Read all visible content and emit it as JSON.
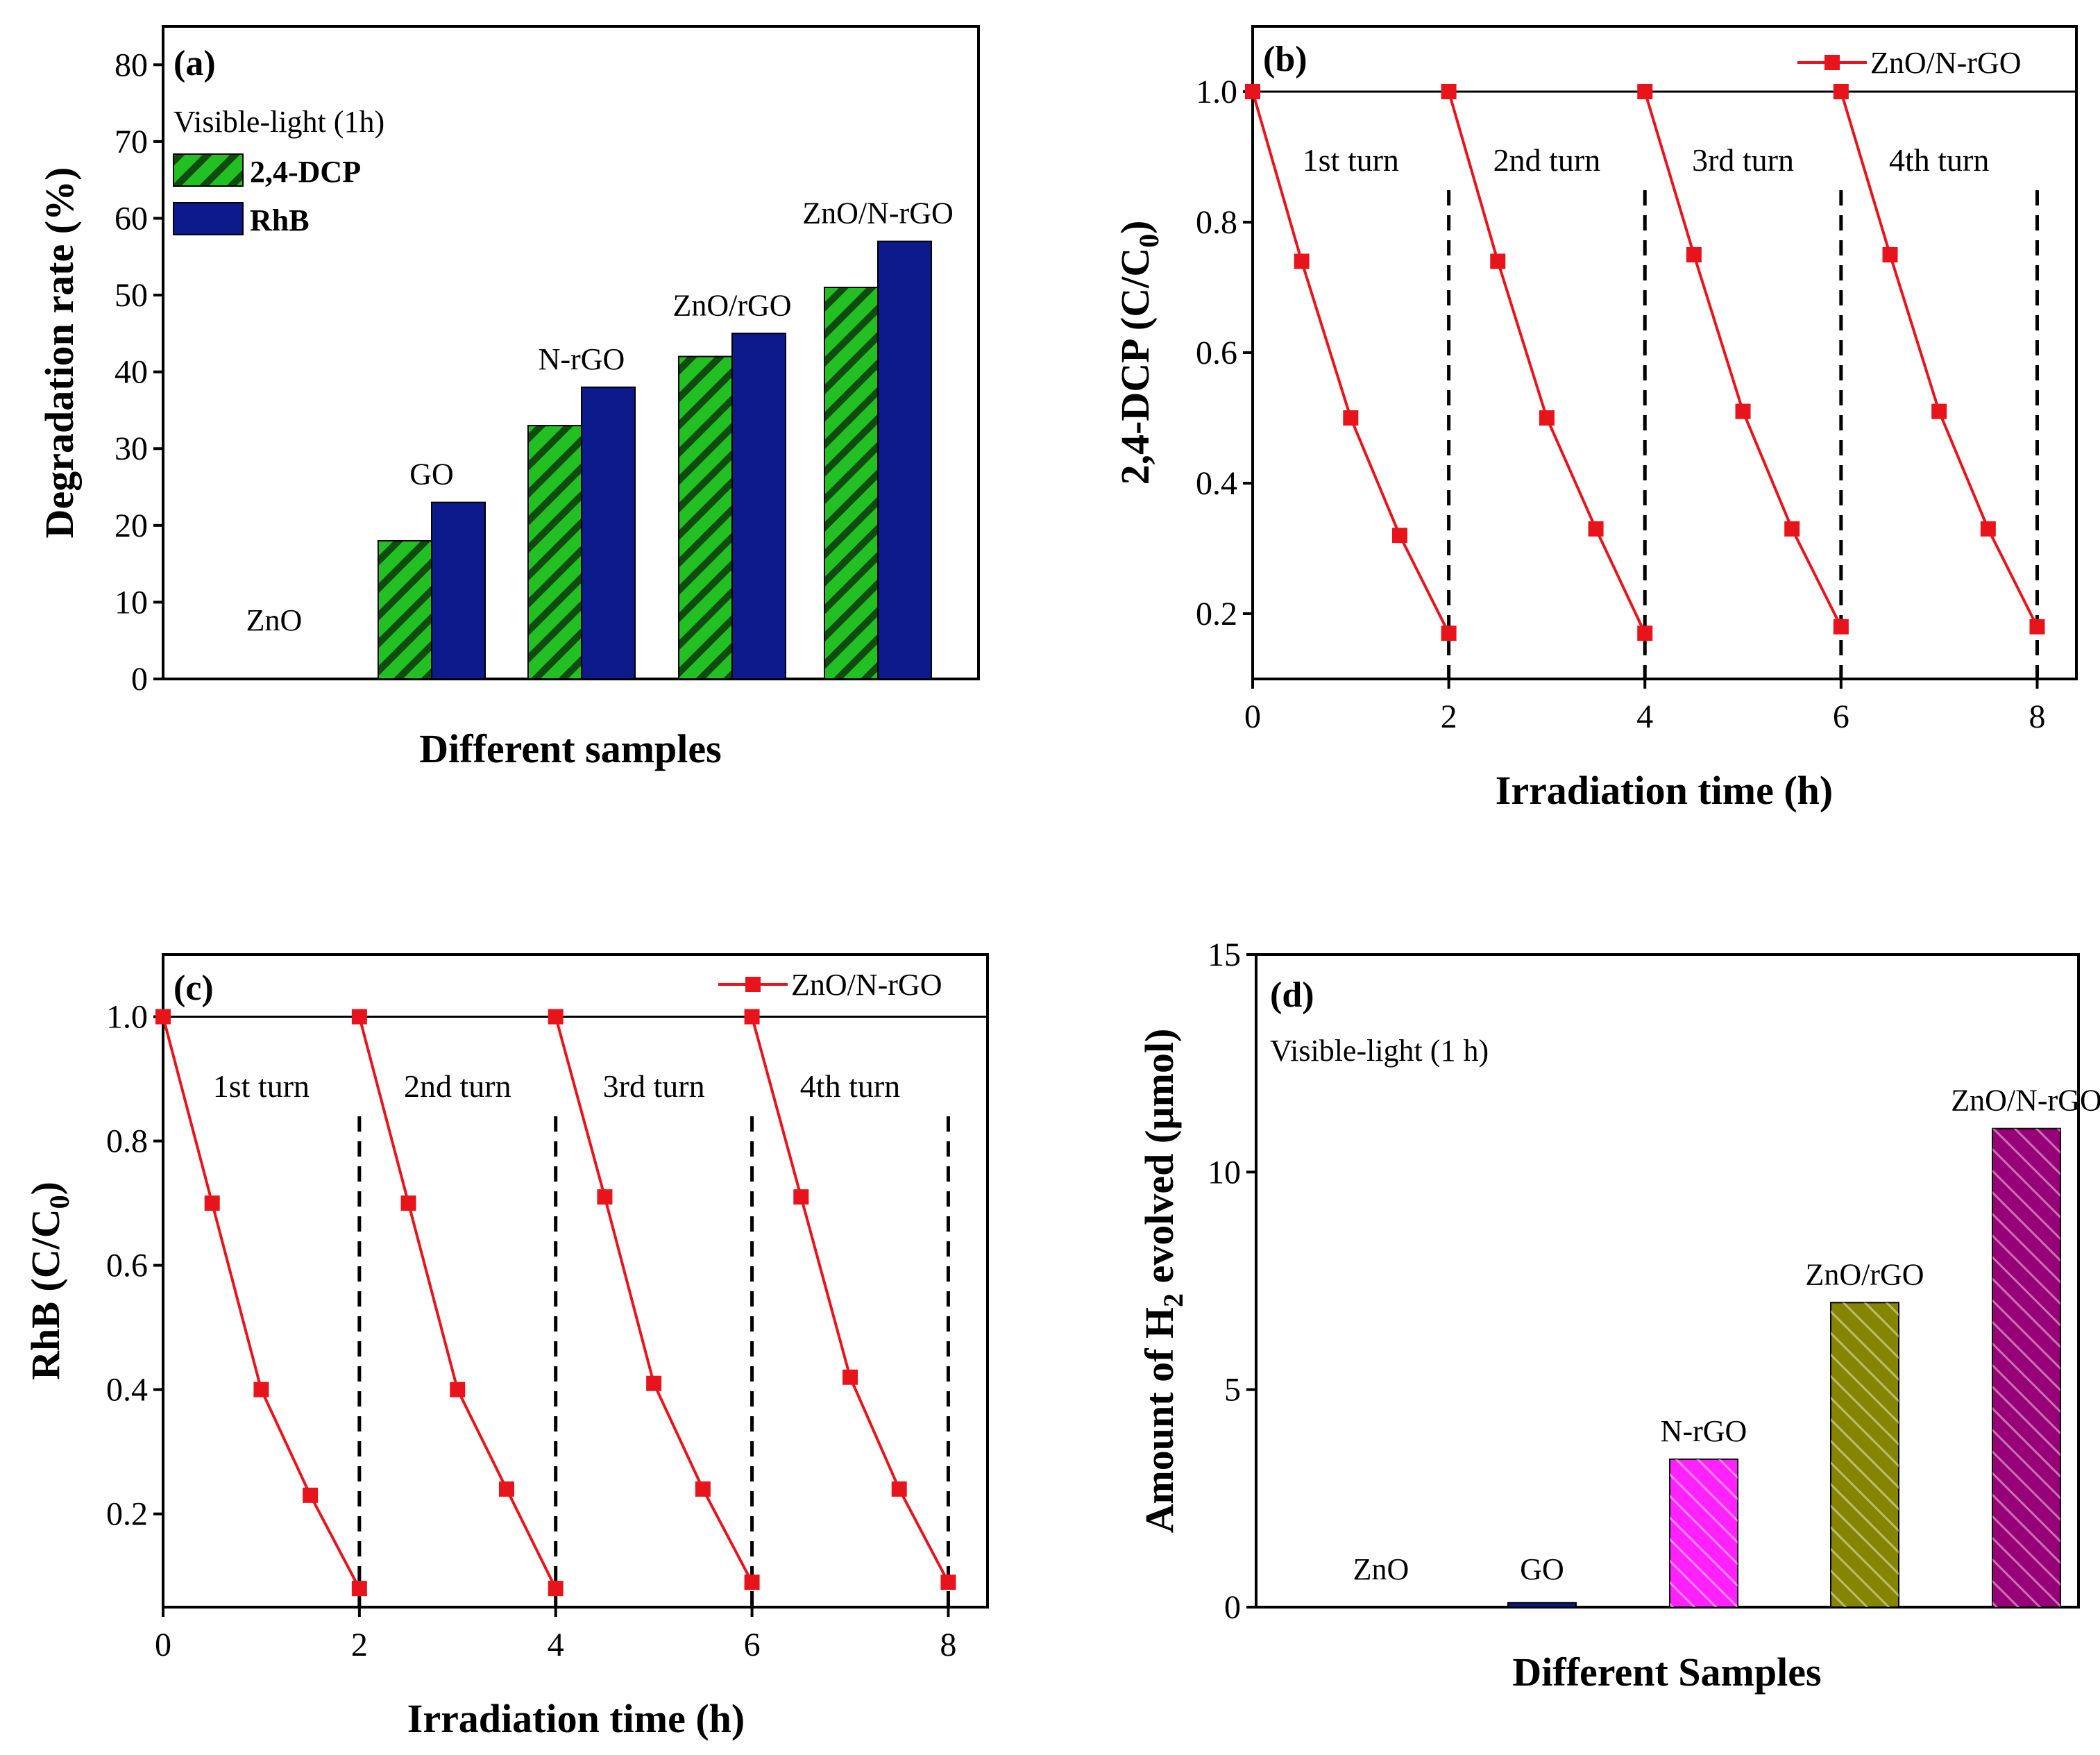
{
  "chart_data": [
    {
      "panel": "(a)",
      "type": "bar",
      "xlabel": "Different samples",
      "ylabel": "Degradation rate (%)",
      "ylim": [
        0,
        85
      ],
      "yticks": [
        0,
        10,
        20,
        30,
        40,
        50,
        60,
        70,
        80
      ],
      "note": "Visible-light (1h)",
      "categories": [
        "ZnO",
        "GO",
        "N-rGO",
        "ZnO/rGO",
        "ZnO/N-rGO"
      ],
      "series": [
        {
          "name": "2,4-DCP",
          "values": [
            0,
            18,
            33,
            42,
            51
          ],
          "color": "#22c022",
          "hatch": true
        },
        {
          "name": "RhB",
          "values": [
            0,
            23,
            38,
            45,
            57
          ],
          "color": "#0d1a8c",
          "hatch": false
        }
      ]
    },
    {
      "panel": "(b)",
      "type": "line",
      "xlabel": "Irradiation time (h)",
      "ylabel_main": "2,4-DCP (C/C",
      "ylabel_sub": "0",
      "ylabel_end": ")",
      "xlim": [
        0,
        8.4
      ],
      "ylim": [
        0.1,
        1.1
      ],
      "xticks": [
        0,
        2,
        4,
        6,
        8
      ],
      "yticks": [
        "0.2",
        "0.4",
        "0.6",
        "0.8",
        "1.0"
      ],
      "legend": "ZnO/N-rGO",
      "color": "#e8141c",
      "turns": [
        "1st turn",
        "2nd turn",
        "3rd turn",
        "4th turn"
      ],
      "dividers": [
        2,
        4,
        6,
        8
      ],
      "cycles": [
        {
          "x": [
            0,
            0.5,
            1,
            1.5,
            2
          ],
          "y": [
            1.0,
            0.74,
            0.5,
            0.32,
            0.17
          ]
        },
        {
          "x": [
            2,
            2.5,
            3,
            3.5,
            4
          ],
          "y": [
            1.0,
            0.74,
            0.5,
            0.33,
            0.17
          ]
        },
        {
          "x": [
            4,
            4.5,
            5,
            5.5,
            6
          ],
          "y": [
            1.0,
            0.75,
            0.51,
            0.33,
            0.18
          ]
        },
        {
          "x": [
            6,
            6.5,
            7,
            7.5,
            8
          ],
          "y": [
            1.0,
            0.75,
            0.51,
            0.33,
            0.18
          ]
        }
      ]
    },
    {
      "panel": "(c)",
      "type": "line",
      "xlabel": "Irradiation time (h)",
      "ylabel_main": "RhB (C/C",
      "ylabel_sub": "0",
      "ylabel_end": ")",
      "xlim": [
        0,
        8.4
      ],
      "ylim": [
        0.05,
        1.1
      ],
      "xticks": [
        0,
        2,
        4,
        6,
        8
      ],
      "yticks": [
        "0.2",
        "0.4",
        "0.6",
        "0.8",
        "1.0"
      ],
      "legend": "ZnO/N-rGO",
      "color": "#e8141c",
      "turns": [
        "1st turn",
        "2nd turn",
        "3rd turn",
        "4th turn"
      ],
      "dividers": [
        2,
        4,
        6,
        8
      ],
      "cycles": [
        {
          "x": [
            0,
            0.5,
            1,
            1.5,
            2
          ],
          "y": [
            1.0,
            0.7,
            0.4,
            0.23,
            0.08
          ]
        },
        {
          "x": [
            2,
            2.5,
            3,
            3.5,
            4
          ],
          "y": [
            1.0,
            0.7,
            0.4,
            0.24,
            0.08
          ]
        },
        {
          "x": [
            4,
            4.5,
            5,
            5.5,
            6
          ],
          "y": [
            1.0,
            0.71,
            0.41,
            0.24,
            0.09
          ]
        },
        {
          "x": [
            6,
            6.5,
            7,
            7.5,
            8
          ],
          "y": [
            1.0,
            0.71,
            0.42,
            0.24,
            0.09
          ]
        }
      ]
    },
    {
      "panel": "(d)",
      "type": "bar",
      "xlabel": "Different Samples",
      "ylabel_main": "Amount of H",
      "ylabel_sub": "2",
      "ylabel_end": " evolved (µmol)",
      "ylim": [
        0,
        15
      ],
      "yticks": [
        0,
        5,
        10,
        15
      ],
      "note": "Visible-light (1 h)",
      "categories": [
        "ZnO",
        "GO",
        "N-rGO",
        "ZnO/rGO",
        "ZnO/N-rGO"
      ],
      "values": [
        0,
        0.1,
        3.4,
        7.0,
        11.0
      ],
      "colors": [
        "#d8d8d8",
        "#0d1a8c",
        "#ff22ff",
        "#858500",
        "#980077"
      ]
    }
  ]
}
